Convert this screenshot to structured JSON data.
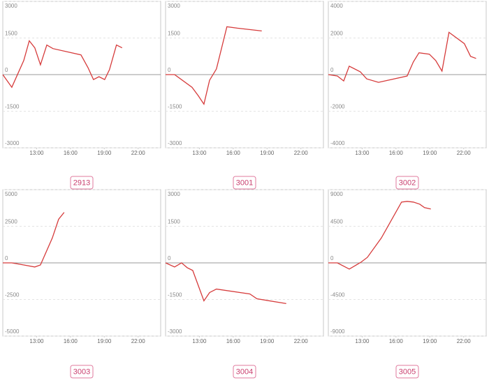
{
  "chart_data": [
    {
      "type": "line",
      "title": "2913",
      "color": "#d63b3b",
      "x": [
        10,
        10.8,
        11.86,
        12.35,
        12.84,
        13.34,
        13.9,
        14.45,
        16.93,
        17.55,
        18.04,
        18.53,
        19.03,
        19.46,
        20.08,
        20.58
      ],
      "values": [
        0,
        -520,
        577,
        1385,
        1096,
        404,
        1212,
        1067,
        808,
        288,
        -202,
        -87,
        -202,
        202,
        1212,
        1096
      ],
      "xlim": [
        10,
        24
      ],
      "ylim": [
        -3000,
        3000
      ],
      "xticks": [
        {
          "value": 13,
          "label": "13:00"
        },
        {
          "value": 16,
          "label": "16:00"
        },
        {
          "value": 19,
          "label": "19:00"
        },
        {
          "value": 22,
          "label": "22:00"
        }
      ],
      "yticks": [
        3000,
        1500,
        0,
        -1500,
        -3000
      ]
    },
    {
      "type": "line",
      "title": "3001",
      "color": "#d63b3b",
      "x": [
        10,
        10.8,
        12.35,
        12.9,
        13.4,
        13.9,
        14.51,
        15.44,
        16.37,
        18.53
      ],
      "values": [
        0,
        0,
        -520,
        -865,
        -1212,
        -231,
        231,
        1962,
        1904,
        1789
      ],
      "xlim": [
        10,
        24
      ],
      "ylim": [
        -3000,
        3000
      ],
      "xticks": [
        {
          "value": 13,
          "label": "13:00"
        },
        {
          "value": 16,
          "label": "16:00"
        },
        {
          "value": 19,
          "label": "19:00"
        },
        {
          "value": 22,
          "label": "22:00"
        }
      ],
      "yticks": [
        3000,
        1500,
        0,
        -1500,
        -3000
      ]
    },
    {
      "type": "line",
      "title": "3002",
      "color": "#d63b3b",
      "x": [
        10,
        10.8,
        11.36,
        11.85,
        12.84,
        13.4,
        14.45,
        16.99,
        17.54,
        18.04,
        18.96,
        19.52,
        20.08,
        20.7,
        22.06,
        22.61,
        23.1
      ],
      "values": [
        0,
        -77,
        -346,
        462,
        154,
        -231,
        -423,
        -77,
        692,
        1192,
        1115,
        769,
        192,
        2308,
        1692,
        1000,
        885
      ],
      "xlim": [
        10,
        24
      ],
      "ylim": [
        -4000,
        4000
      ],
      "xticks": [
        {
          "value": 13,
          "label": "13:00"
        },
        {
          "value": 16,
          "label": "16:00"
        },
        {
          "value": 19,
          "label": "19:00"
        },
        {
          "value": 22,
          "label": "22:00"
        }
      ],
      "yticks": [
        4000,
        2000,
        0,
        -2000,
        -4000
      ]
    },
    {
      "type": "line",
      "title": "3003",
      "color": "#d63b3b",
      "x": [
        10,
        10.8,
        11.86,
        12.84,
        13.34,
        14.39,
        14.95,
        15.44
      ],
      "values": [
        0,
        0,
        -142,
        -283,
        -142,
        1699,
        2974,
        3446
      ],
      "xlim": [
        10,
        24
      ],
      "ylim": [
        -5000,
        5000
      ],
      "xticks": [
        {
          "value": 13,
          "label": "13:00"
        },
        {
          "value": 16,
          "label": "16:00"
        },
        {
          "value": 19,
          "label": "19:00"
        },
        {
          "value": 22,
          "label": "22:00"
        }
      ],
      "yticks": [
        5000,
        2500,
        0,
        -2500,
        -5000
      ]
    },
    {
      "type": "line",
      "title": "3004",
      "color": "#d63b3b",
      "x": [
        10,
        10.8,
        11.42,
        11.92,
        12.41,
        13.4,
        13.9,
        14.51,
        17.48,
        18.1,
        20.7
      ],
      "values": [
        0,
        -170,
        0,
        -198,
        -311,
        -1557,
        -1217,
        -1075,
        -1274,
        -1472,
        -1670
      ],
      "xlim": [
        10,
        24
      ],
      "ylim": [
        -3000,
        3000
      ],
      "xticks": [
        {
          "value": 13,
          "label": "13:00"
        },
        {
          "value": 16,
          "label": "16:00"
        },
        {
          "value": 19,
          "label": "19:00"
        },
        {
          "value": 22,
          "label": "22:00"
        }
      ],
      "yticks": [
        3000,
        1500,
        0,
        -1500,
        -3000
      ]
    },
    {
      "type": "line",
      "title": "3005",
      "color": "#d63b3b",
      "x": [
        10,
        10.8,
        11.86,
        12.9,
        13.46,
        14.7,
        16.49,
        16.99,
        17.54,
        18.1,
        18.53,
        19.09
      ],
      "values": [
        0,
        0,
        -764,
        85,
        679,
        3057,
        7472,
        7557,
        7472,
        7217,
        6792,
        6623
      ],
      "xlim": [
        10,
        24
      ],
      "ylim": [
        -9000,
        9000
      ],
      "xticks": [
        {
          "value": 13,
          "label": "13:00"
        },
        {
          "value": 16,
          "label": "16:00"
        },
        {
          "value": 19,
          "label": "19:00"
        },
        {
          "value": 22,
          "label": "22:00"
        }
      ],
      "yticks": [
        9000,
        4500,
        0,
        -4500,
        -9000
      ]
    }
  ]
}
